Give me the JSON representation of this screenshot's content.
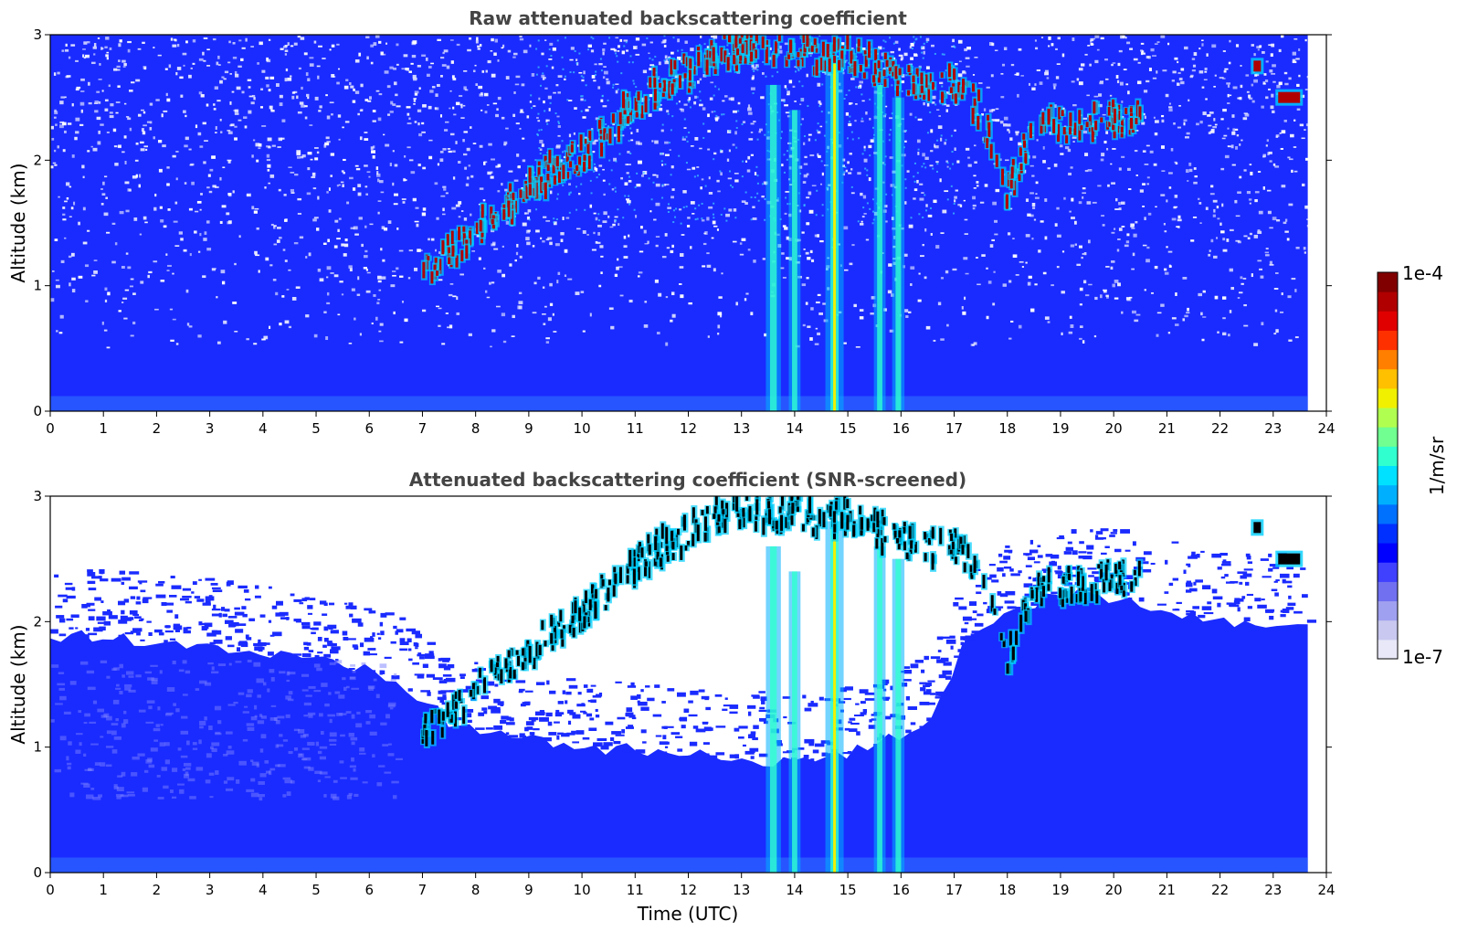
{
  "colors": {
    "background": "#ffffff",
    "title": "#444444",
    "bg_blue": "#1a2bff",
    "cloud_red": "#b00000",
    "cloud_edge": "#00d0ff",
    "screened": "#000000"
  },
  "chart_data": [
    {
      "type": "heatmap",
      "title": "Raw attenuated backscattering coefficient",
      "xlabel": "",
      "ylabel": "Altitude (km)",
      "xlim": [
        0,
        24
      ],
      "ylim": [
        0,
        3
      ],
      "xticks": [
        "0",
        "1",
        "2",
        "3",
        "4",
        "5",
        "6",
        "7",
        "8",
        "9",
        "10",
        "11",
        "12",
        "13",
        "14",
        "15",
        "16",
        "17",
        "18",
        "19",
        "20",
        "21",
        "22",
        "23",
        "24"
      ],
      "yticks": [
        "0",
        "1",
        "2",
        "3"
      ],
      "data_end_time": 23.65,
      "cloud_layer": [
        {
          "t": 7.0,
          "h": 1.15
        },
        {
          "t": 7.5,
          "h": 1.25
        },
        {
          "t": 8.0,
          "h": 1.45
        },
        {
          "t": 8.5,
          "h": 1.6
        },
        {
          "t": 9.0,
          "h": 1.75
        },
        {
          "t": 9.5,
          "h": 1.95
        },
        {
          "t": 10.0,
          "h": 2.05
        },
        {
          "t": 10.5,
          "h": 2.25
        },
        {
          "t": 11.0,
          "h": 2.45
        },
        {
          "t": 11.5,
          "h": 2.6
        },
        {
          "t": 12.0,
          "h": 2.7
        },
        {
          "t": 12.5,
          "h": 2.85
        },
        {
          "t": 13.0,
          "h": 2.9
        },
        {
          "t": 13.5,
          "h": 2.85
        },
        {
          "t": 14.0,
          "h": 2.9
        },
        {
          "t": 14.5,
          "h": 2.8
        },
        {
          "t": 15.0,
          "h": 2.85
        },
        {
          "t": 15.5,
          "h": 2.75
        },
        {
          "t": 16.0,
          "h": 2.65
        },
        {
          "t": 16.5,
          "h": 2.6
        },
        {
          "t": 17.0,
          "h": 2.6
        },
        {
          "t": 17.5,
          "h": 2.4
        },
        {
          "t": 18.0,
          "h": 1.7
        },
        {
          "t": 18.5,
          "h": 2.3
        },
        {
          "t": 19.0,
          "h": 2.3
        },
        {
          "t": 19.5,
          "h": 2.3
        },
        {
          "t": 20.0,
          "h": 2.35
        },
        {
          "t": 20.5,
          "h": 2.3
        },
        {
          "t": 22.7,
          "h": 2.75
        },
        {
          "t": 23.3,
          "h": 2.5
        }
      ],
      "precip_shafts": [
        {
          "t": 13.6,
          "top": 2.6,
          "strength": 0.7
        },
        {
          "t": 14.0,
          "top": 2.4,
          "strength": 0.4
        },
        {
          "t": 14.75,
          "top": 2.8,
          "strength": 1.0
        },
        {
          "t": 15.6,
          "top": 2.6,
          "strength": 0.4
        },
        {
          "t": 15.95,
          "top": 2.5,
          "strength": 0.45
        }
      ]
    },
    {
      "type": "heatmap",
      "title": "Attenuated backscattering coefficient (SNR-screened)",
      "xlabel": "Time (UTC)",
      "ylabel": "Altitude (km)",
      "xlim": [
        0,
        24
      ],
      "ylim": [
        0,
        3
      ],
      "xticks": [
        "0",
        "1",
        "2",
        "3",
        "4",
        "5",
        "6",
        "7",
        "8",
        "9",
        "10",
        "11",
        "12",
        "13",
        "14",
        "15",
        "16",
        "17",
        "18",
        "19",
        "20",
        "21",
        "22",
        "23",
        "24"
      ],
      "yticks": [
        "0",
        "1",
        "2",
        "3"
      ],
      "data_end_time": 23.65,
      "screen_top": [
        {
          "t": 0.0,
          "h": 1.9
        },
        {
          "t": 2.0,
          "h": 1.85
        },
        {
          "t": 4.0,
          "h": 1.75
        },
        {
          "t": 6.0,
          "h": 1.6
        },
        {
          "t": 6.8,
          "h": 1.45
        },
        {
          "t": 7.5,
          "h": 1.2
        },
        {
          "t": 8.5,
          "h": 1.1
        },
        {
          "t": 10.0,
          "h": 1.0
        },
        {
          "t": 11.5,
          "h": 0.95
        },
        {
          "t": 13.0,
          "h": 0.9
        },
        {
          "t": 14.5,
          "h": 0.9
        },
        {
          "t": 15.5,
          "h": 1.0
        },
        {
          "t": 16.5,
          "h": 1.2
        },
        {
          "t": 17.3,
          "h": 1.9
        },
        {
          "t": 18.0,
          "h": 2.1
        },
        {
          "t": 19.0,
          "h": 2.2
        },
        {
          "t": 20.0,
          "h": 2.2
        },
        {
          "t": 21.0,
          "h": 2.1
        },
        {
          "t": 22.0,
          "h": 2.0
        },
        {
          "t": 23.65,
          "h": 2.0
        }
      ],
      "cloud_layer": [
        {
          "t": 7.0,
          "h": 1.15
        },
        {
          "t": 7.5,
          "h": 1.25
        },
        {
          "t": 8.0,
          "h": 1.45
        },
        {
          "t": 8.5,
          "h": 1.6
        },
        {
          "t": 9.0,
          "h": 1.75
        },
        {
          "t": 9.5,
          "h": 1.95
        },
        {
          "t": 10.0,
          "h": 2.05
        },
        {
          "t": 10.5,
          "h": 2.25
        },
        {
          "t": 11.0,
          "h": 2.45
        },
        {
          "t": 11.5,
          "h": 2.6
        },
        {
          "t": 12.0,
          "h": 2.7
        },
        {
          "t": 12.5,
          "h": 2.85
        },
        {
          "t": 13.0,
          "h": 2.9
        },
        {
          "t": 13.5,
          "h": 2.85
        },
        {
          "t": 14.0,
          "h": 2.9
        },
        {
          "t": 14.5,
          "h": 2.8
        },
        {
          "t": 15.0,
          "h": 2.85
        },
        {
          "t": 15.5,
          "h": 2.75
        },
        {
          "t": 16.0,
          "h": 2.65
        },
        {
          "t": 16.5,
          "h": 2.6
        },
        {
          "t": 17.0,
          "h": 2.6
        },
        {
          "t": 17.5,
          "h": 2.4
        },
        {
          "t": 18.0,
          "h": 1.7
        },
        {
          "t": 18.5,
          "h": 2.3
        },
        {
          "t": 19.0,
          "h": 2.3
        },
        {
          "t": 19.5,
          "h": 2.3
        },
        {
          "t": 20.0,
          "h": 2.35
        },
        {
          "t": 20.5,
          "h": 2.3
        },
        {
          "t": 22.7,
          "h": 2.75
        },
        {
          "t": 23.3,
          "h": 2.5
        }
      ],
      "precip_shafts": [
        {
          "t": 13.6,
          "top": 2.6,
          "strength": 0.7
        },
        {
          "t": 14.0,
          "top": 2.4,
          "strength": 0.4
        },
        {
          "t": 14.75,
          "top": 2.8,
          "strength": 1.0
        },
        {
          "t": 15.6,
          "top": 2.6,
          "strength": 0.4
        },
        {
          "t": 15.95,
          "top": 2.5,
          "strength": 0.45
        }
      ]
    }
  ],
  "colorbar": {
    "max_label": "1e-4",
    "min_label": "1e-7",
    "unit_label": "1/m/sr",
    "colors": [
      "#e8e8f8",
      "#c8c8f0",
      "#a0a0f0",
      "#7070f0",
      "#4040ff",
      "#0000ff",
      "#0030ff",
      "#0070ff",
      "#00b0ff",
      "#00e0ff",
      "#30ffd0",
      "#70ff90",
      "#b0ff50",
      "#f0f000",
      "#ffc000",
      "#ff8000",
      "#ff3000",
      "#e00000",
      "#b00000",
      "#800000"
    ]
  }
}
